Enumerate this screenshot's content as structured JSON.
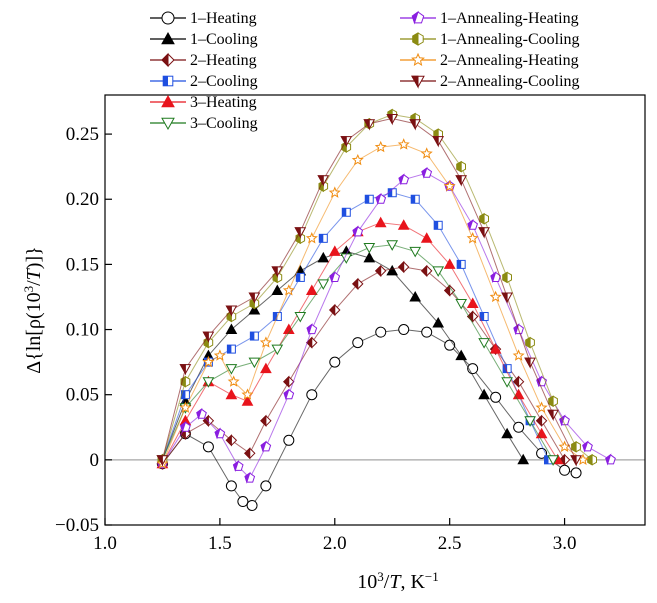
{
  "chart_data": {
    "type": "scatter",
    "xlabel_parts": {
      "base": "10",
      "sup": "3",
      "slash": "/",
      "var": "T",
      "sep": ", K",
      "unit_sup": "−1"
    },
    "ylabel_parts": {
      "pre": "Δ{ln[ρ(10",
      "sup": "3",
      "slash": "/",
      "var": "T",
      "post": ")]}"
    },
    "xlim": [
      1.0,
      3.35
    ],
    "ylim": [
      -0.05,
      0.28
    ],
    "xticks": [
      1.0,
      1.5,
      2.0,
      2.5,
      3.0
    ],
    "xtick_labels": [
      "1.0",
      "1.5",
      "2.0",
      "2.5",
      "3.0"
    ],
    "yticks": [
      -0.05,
      0,
      0.05,
      0.1,
      0.15,
      0.2,
      0.25
    ],
    "ytick_labels": [
      "−0.05",
      "0",
      "0.05",
      "0.10",
      "0.15",
      "0.20",
      "0.25"
    ],
    "zero_line": true,
    "legend_position": "top",
    "series": [
      {
        "name": "1–Heating",
        "marker": "circle-open",
        "color": "#000000",
        "x": [
          1.25,
          1.35,
          1.45,
          1.55,
          1.6,
          1.64,
          1.7,
          1.8,
          1.9,
          2.0,
          2.1,
          2.2,
          2.3,
          2.4,
          2.5,
          2.6,
          2.7,
          2.8,
          2.9,
          3.0,
          3.05
        ],
        "y": [
          -0.003,
          0.02,
          0.01,
          -0.02,
          -0.032,
          -0.035,
          -0.02,
          0.015,
          0.05,
          0.075,
          0.09,
          0.098,
          0.1,
          0.098,
          0.088,
          0.07,
          0.048,
          0.025,
          0.005,
          -0.008,
          -0.01
        ]
      },
      {
        "name": "1–Cooling",
        "marker": "triangle-up",
        "color": "#000000",
        "x": [
          1.25,
          1.35,
          1.45,
          1.55,
          1.65,
          1.75,
          1.85,
          1.95,
          2.05,
          2.15,
          2.25,
          2.35,
          2.45,
          2.55,
          2.65,
          2.75,
          2.82
        ],
        "y": [
          0.0,
          0.045,
          0.08,
          0.1,
          0.115,
          0.13,
          0.145,
          0.155,
          0.16,
          0.155,
          0.145,
          0.125,
          0.105,
          0.08,
          0.05,
          0.02,
          0.0
        ]
      },
      {
        "name": "2–Heating",
        "marker": "diamond-half",
        "color": "#7b1113",
        "x": [
          1.25,
          1.35,
          1.45,
          1.55,
          1.63,
          1.7,
          1.8,
          1.9,
          2.0,
          2.1,
          2.2,
          2.3,
          2.4,
          2.5,
          2.6,
          2.7,
          2.8,
          2.9,
          3.0
        ],
        "y": [
          -0.003,
          0.02,
          0.03,
          0.015,
          0.005,
          0.03,
          0.06,
          0.09,
          0.115,
          0.135,
          0.145,
          0.148,
          0.145,
          0.13,
          0.11,
          0.085,
          0.06,
          0.03,
          0.0
        ]
      },
      {
        "name": "2–Cooling",
        "marker": "square-half",
        "color": "#1f4fe0",
        "x": [
          1.25,
          1.35,
          1.45,
          1.55,
          1.65,
          1.75,
          1.85,
          1.95,
          2.05,
          2.15,
          2.25,
          2.35,
          2.45,
          2.55,
          2.65,
          2.75,
          2.85,
          2.93
        ],
        "y": [
          0.0,
          0.05,
          0.075,
          0.085,
          0.095,
          0.11,
          0.14,
          0.17,
          0.19,
          0.2,
          0.205,
          0.2,
          0.18,
          0.15,
          0.11,
          0.07,
          0.03,
          0.0
        ]
      },
      {
        "name": "3–Heating",
        "marker": "triangle-up",
        "color": "#e8141c",
        "x": [
          1.25,
          1.35,
          1.45,
          1.55,
          1.62,
          1.7,
          1.8,
          1.9,
          2.0,
          2.1,
          2.2,
          2.3,
          2.4,
          2.5,
          2.6,
          2.7,
          2.8,
          2.9,
          2.97
        ],
        "y": [
          -0.003,
          0.03,
          0.06,
          0.05,
          0.045,
          0.07,
          0.1,
          0.13,
          0.16,
          0.175,
          0.182,
          0.18,
          0.17,
          0.15,
          0.12,
          0.085,
          0.05,
          0.02,
          0.0
        ]
      },
      {
        "name": "3–Cooling",
        "marker": "triangle-down",
        "color": "#1f7a1f",
        "x": [
          1.25,
          1.35,
          1.45,
          1.55,
          1.65,
          1.75,
          1.85,
          1.95,
          2.05,
          2.15,
          2.25,
          2.35,
          2.45,
          2.55,
          2.65,
          2.75,
          2.85,
          2.95
        ],
        "y": [
          0.0,
          0.04,
          0.06,
          0.07,
          0.075,
          0.085,
          0.11,
          0.135,
          0.155,
          0.163,
          0.165,
          0.16,
          0.145,
          0.12,
          0.09,
          0.06,
          0.03,
          0.0
        ]
      },
      {
        "name": "1–Annealing-Heating",
        "marker": "pentagon",
        "color": "#8a1ee0",
        "x": [
          1.25,
          1.35,
          1.42,
          1.5,
          1.58,
          1.63,
          1.7,
          1.8,
          1.9,
          2.0,
          2.1,
          2.2,
          2.3,
          2.4,
          2.5,
          2.6,
          2.7,
          2.8,
          2.9,
          3.0,
          3.1,
          3.2
        ],
        "y": [
          -0.003,
          0.025,
          0.035,
          0.02,
          -0.005,
          -0.014,
          0.01,
          0.05,
          0.1,
          0.14,
          0.175,
          0.2,
          0.215,
          0.22,
          0.21,
          0.18,
          0.14,
          0.1,
          0.06,
          0.03,
          0.01,
          0.0
        ]
      },
      {
        "name": "1–Annealing-Cooling",
        "marker": "hexagon-half",
        "color": "#8b8b12",
        "x": [
          1.25,
          1.35,
          1.45,
          1.55,
          1.65,
          1.75,
          1.85,
          1.95,
          2.05,
          2.15,
          2.25,
          2.35,
          2.45,
          2.55,
          2.65,
          2.75,
          2.85,
          2.95,
          3.05,
          3.12
        ],
        "y": [
          0.0,
          0.06,
          0.09,
          0.11,
          0.12,
          0.14,
          0.17,
          0.21,
          0.24,
          0.258,
          0.265,
          0.262,
          0.25,
          0.225,
          0.185,
          0.14,
          0.09,
          0.045,
          0.01,
          0.0
        ]
      },
      {
        "name": "2–Annealing-Heating",
        "marker": "star",
        "color": "#f08c10",
        "x": [
          1.25,
          1.35,
          1.45,
          1.5,
          1.56,
          1.62,
          1.7,
          1.8,
          1.9,
          2.0,
          2.1,
          2.2,
          2.3,
          2.4,
          2.5,
          2.6,
          2.7,
          2.8,
          2.9,
          3.0,
          3.08
        ],
        "y": [
          -0.003,
          0.04,
          0.075,
          0.08,
          0.06,
          0.05,
          0.09,
          0.13,
          0.17,
          0.205,
          0.23,
          0.24,
          0.242,
          0.235,
          0.21,
          0.17,
          0.125,
          0.08,
          0.04,
          0.01,
          0.0
        ]
      },
      {
        "name": "2–Annealing-Cooling",
        "marker": "triangle-down-half",
        "color": "#7b1113",
        "x": [
          1.25,
          1.35,
          1.45,
          1.55,
          1.65,
          1.75,
          1.85,
          1.95,
          2.05,
          2.15,
          2.25,
          2.35,
          2.45,
          2.55,
          2.65,
          2.75,
          2.85,
          2.95,
          3.05
        ],
        "y": [
          0.0,
          0.07,
          0.095,
          0.115,
          0.125,
          0.145,
          0.175,
          0.215,
          0.245,
          0.258,
          0.262,
          0.258,
          0.245,
          0.215,
          0.175,
          0.125,
          0.075,
          0.035,
          0.0
        ]
      }
    ]
  }
}
